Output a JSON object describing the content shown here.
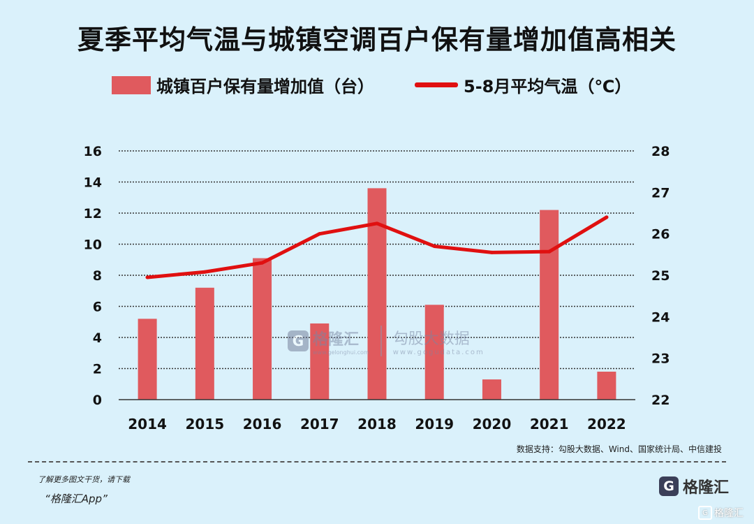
{
  "header": {
    "title": "夏季平均气温与城镇空调百户保有量增加值高相关"
  },
  "legend": {
    "bar_label": "城镇百户保有量增加值（台）",
    "line_label": "5-8月平均气温（℃）"
  },
  "chart_data": {
    "type": "bar",
    "title": "夏季平均气温与城镇空调百户保有量增加值高相关",
    "categories": [
      "2014",
      "2015",
      "2016",
      "2017",
      "2018",
      "2019",
      "2020",
      "2021",
      "2022"
    ],
    "series": [
      {
        "name": "城镇百户保有量增加值（台）",
        "type": "bar",
        "axis": "left",
        "color": "#e05a5e",
        "values": [
          5.2,
          7.2,
          9.1,
          4.9,
          13.6,
          6.1,
          1.3,
          12.2,
          1.8
        ]
      },
      {
        "name": "5-8月平均气温（℃）",
        "type": "line",
        "axis": "right",
        "color": "#e01010",
        "values": [
          24.95,
          25.08,
          25.3,
          26.0,
          26.25,
          25.7,
          25.55,
          25.57,
          26.4
        ]
      }
    ],
    "y_left": {
      "min": 0,
      "max": 16,
      "ticks": [
        "0",
        "2",
        "4",
        "6",
        "8",
        "10",
        "12",
        "14",
        "16"
      ]
    },
    "y_right": {
      "min": 22,
      "max": 28,
      "ticks": [
        "22",
        "23",
        "24",
        "25",
        "26",
        "27",
        "28"
      ]
    },
    "grid": true,
    "legend_position": "top"
  },
  "watermark": {
    "center_logo_text": "格隆汇",
    "center_logo_url": "www.gelonghui.com",
    "center_right_text": "勾股大数据",
    "center_right_url": "www.gogudata.com",
    "logo_mark": "G"
  },
  "footer": {
    "source": "数据支持：勾股大数据、Wind、国家统计局、中信建投",
    "line1": "了解更多图文干货，请下载",
    "line2": "“格隆汇App”",
    "logo_text": "格隆汇",
    "bottom_watermark": "格隆汇"
  },
  "colors": {
    "background": "#daf1fb",
    "bar": "#e05a5e",
    "line": "#e01010"
  }
}
